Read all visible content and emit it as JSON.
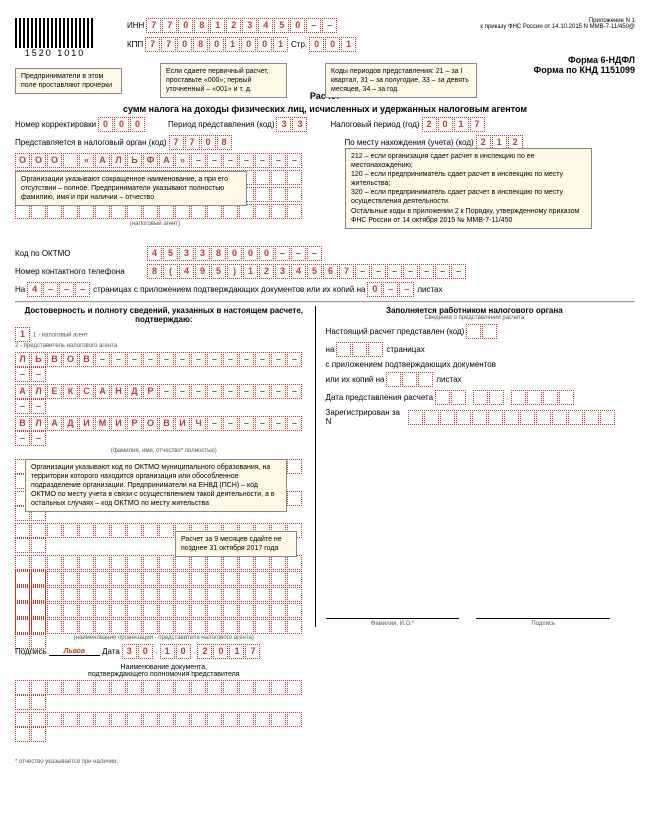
{
  "header": {
    "prilozh": "Приложение N 1",
    "prikaz": "к приказу ФНС России от 14.10.2015 N ММВ-7-11/450@",
    "barcode": "1520 1010",
    "inn_label": "ИНН",
    "kpp_label": "КПП",
    "str_label": "Стр.",
    "inn": "7708123450--",
    "kpp": "770801001",
    "str": "001",
    "form1": "Форма 6-НДФЛ",
    "form2": "Форма по КНД 1151099"
  },
  "notes": {
    "n1": "Предприниматели в этом поле проставляют прочерки",
    "n2": "Если сдаете первичный расчет, проставьте «000»; первый уточненный – «001» и т. д.",
    "n3": "Коды периодов представления: 21 – за I квартал, 31 – за полугодие, 33 – за девять месяцев, 34 – за год",
    "n4": "Организации указывают сокращенное наименование, а при его отсутствии – полное. Предприниматели указывают полностью фамилию, имя и при наличии – отчество",
    "n5": "212 – если организация сдает расчет в инспекцию по ее местонахождению;\n120 – если предприниматель сдает расчет в инспекцию по месту жительства;\n320 – если предприниматель сдает расчет в инспекцию по месту осуществления деятельности.\nОстальные коды в приложении 2 к Порядку, утвержденному приказом ФНС России от 14 октября 2015 № ММВ-7-11/450",
    "n6": "Организации указывают код по ОКТМО муниципального образования, на территории которого находится организация или обособленное подразделение организации. Предприниматели на ЕНВД (ПСН) – код ОКТМО по месту учета в связи с осуществлением такой деятельности, а в остальных случаях – код ОКТМО по месту жительства",
    "n7": "Расчет за 9 месяцев сдайте не позднее 31 октября 2017 года"
  },
  "title1": "Расчет",
  "title2": "сумм налога на доходы физических лиц, исчисленных и удержанных налоговым агентом",
  "fields": {
    "korr_label": "Номер корректировки",
    "korr": "000",
    "period_label": "Период представления (код)",
    "period": "33",
    "nalper_label": "Налоговый период (год)",
    "nalper": "2017",
    "organ_label": "Представляется в налоговый орган (код)",
    "organ": "7708",
    "mesto_label": "По месту нахождения (учета) (код)",
    "mesto": "212",
    "company": "ООО «АЛЬФА»",
    "agent_label": "(налоговый агент)",
    "oktmo_label": "Код по ОКТМО",
    "oktmo": "45338000---",
    "tel_label": "Номер контактного телефона",
    "tel": "8(495)1234567-------",
    "pages_pre": "На",
    "pages": "4---",
    "pages_mid": "страницах с приложением подтверждающих документов или их копий на",
    "copies": "0--",
    "copies_post": "листах"
  },
  "left": {
    "title": "Достоверность и полноту сведений, указанных в настоящем расчете, подтверждаю:",
    "type": "1",
    "type1": "1 - налоговый агент",
    "type2": "2 - представитель налогового агента",
    "ln": "ЛЬВОВ---------------",
    "fn": "АЛЕКСАНДР-----------",
    "mn": "ВЛАДИМИРОВИЧ--------",
    "fio_label": "(фамилия, имя, отчество* полностью)",
    "org_label": "(наименование организации - представителя налогового агента)",
    "sign": "Подпись",
    "sign_val": "Львов",
    "date": "Дата",
    "date_val": "30.10.2017",
    "doc": "Наименование документа,",
    "doc2": "подтверждающего полномочия представителя"
  },
  "right": {
    "title": "Заполняется работником налогового органа",
    "sub": "Сведения о представлении расчета",
    "f1": "Настоящий расчет представлен (код)",
    "f2": "на",
    "f2b": "страницах",
    "f3": "с приложением подтверждающих документов",
    "f4": "или их копий на",
    "f4b": "листах",
    "f5": "Дата представления расчета",
    "f6": "Зарегистрирован за N",
    "fio": "Фамилия, И.О.*",
    "sign": "Подпись"
  },
  "footer": "* отчество указывается при наличии.",
  "colors": {
    "cell_border": "#c0392b",
    "note_bg": "#fef9e7"
  }
}
